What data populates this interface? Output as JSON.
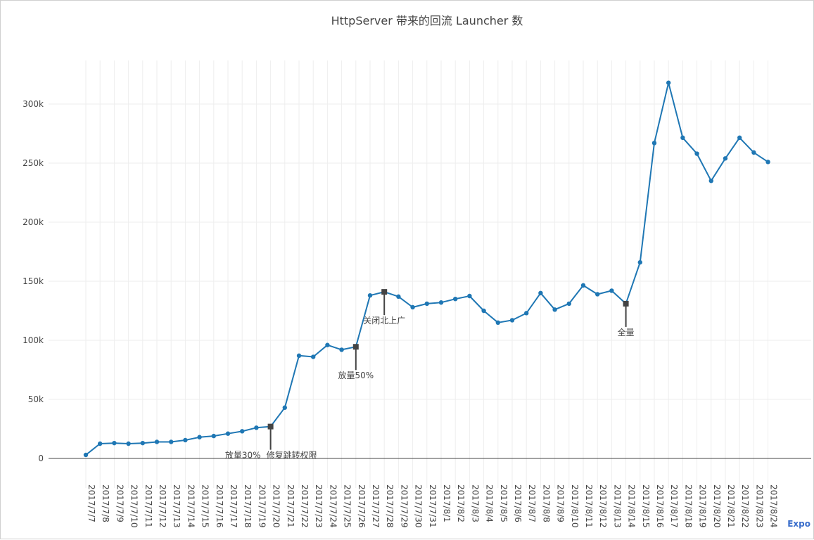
{
  "export_label": "Expo",
  "chart_data": {
    "type": "line",
    "title": "HttpServer 带来的回流 Launcher 数",
    "xlabel": "",
    "ylabel": "",
    "ylim": [
      -25000,
      335000
    ],
    "yticks": [
      0,
      50000,
      100000,
      150000,
      200000,
      250000,
      300000
    ],
    "ytick_labels": [
      "0",
      "50k",
      "100k",
      "150k",
      "200k",
      "250k",
      "300k"
    ],
    "grid": true,
    "line_color": "#1f77b4",
    "marker_color": "#1f77b4",
    "annotation_color": "#444444",
    "categories": [
      "2017/7/7",
      "2017/7/8",
      "2017/7/9",
      "2017/7/10",
      "2017/7/11",
      "2017/7/12",
      "2017/7/13",
      "2017/7/14",
      "2017/7/15",
      "2017/7/16",
      "2017/7/17",
      "2017/7/18",
      "2017/7/19",
      "2017/7/20",
      "2017/7/21",
      "2017/7/22",
      "2017/7/23",
      "2017/7/24",
      "2017/7/25",
      "2017/7/26",
      "2017/7/27",
      "2017/7/28",
      "2017/7/29",
      "2017/7/30",
      "2017/7/31",
      "2017/8/1",
      "2017/8/2",
      "2017/8/3",
      "2017/8/4",
      "2017/8/5",
      "2017/8/6",
      "2017/8/7",
      "2017/8/8",
      "2017/8/9",
      "2017/8/10",
      "2017/8/11",
      "2017/8/12",
      "2017/8/13",
      "2017/8/14",
      "2017/8/15",
      "2017/8/16",
      "2017/8/17",
      "2017/8/18",
      "2017/8/19",
      "2017/8/20",
      "2017/8/21",
      "2017/8/22",
      "2017/8/23",
      "2017/8/24"
    ],
    "values": [
      3000,
      12500,
      13000,
      12500,
      13000,
      14000,
      14000,
      15500,
      18000,
      19000,
      21000,
      23000,
      26000,
      27000,
      43000,
      87000,
      86000,
      96000,
      92000,
      94500,
      138000,
      141000,
      137000,
      128000,
      131000,
      132000,
      135000,
      137500,
      125000,
      115000,
      117000,
      123000,
      140000,
      126000,
      131000,
      146500,
      139000,
      142000,
      131000,
      166000,
      267000,
      318000,
      271500,
      258000,
      235000,
      254000,
      271500,
      259000,
      251000
    ],
    "annotations": [
      {
        "category": "2017/7/20",
        "value": 27000,
        "labels": [
          "放量30%",
          "修复跳转权限"
        ]
      },
      {
        "category": "2017/7/26",
        "value": 94500,
        "labels": [
          "放量50%"
        ]
      },
      {
        "category": "2017/7/28",
        "value": 141000,
        "labels": [
          "关闭北上广"
        ]
      },
      {
        "category": "2017/8/14",
        "value": 131000,
        "labels": [
          "全量"
        ]
      }
    ]
  }
}
